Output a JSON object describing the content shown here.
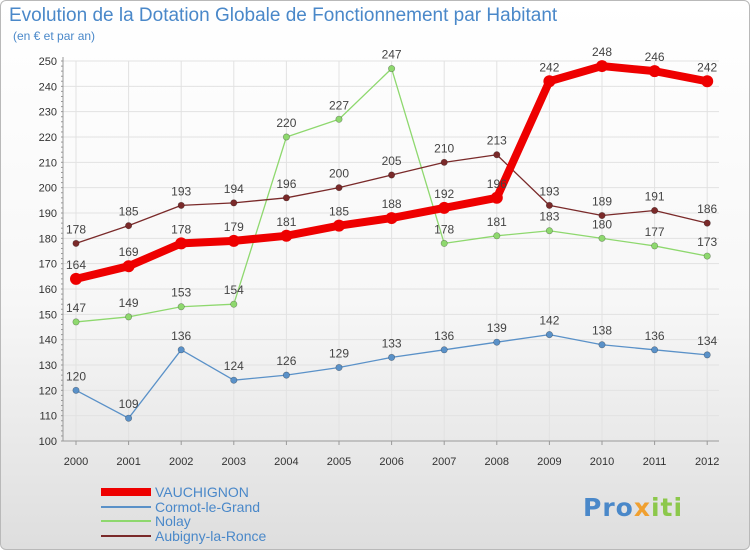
{
  "chart_data": {
    "type": "line",
    "title": "Evolution de la Dotation Globale de Fonctionnement par Habitant",
    "subtitle": "(en € et par an)",
    "xlabel": "",
    "ylabel": "",
    "x": [
      "2000",
      "2001",
      "2002",
      "2003",
      "2004",
      "2005",
      "2006",
      "2007",
      "2008",
      "2009",
      "2010",
      "2011",
      "2012"
    ],
    "ylim": [
      100,
      250
    ],
    "yticks": [
      100,
      110,
      120,
      130,
      140,
      150,
      160,
      170,
      180,
      190,
      200,
      210,
      220,
      230,
      240,
      250
    ],
    "grid": true,
    "legend_position": "bottom-left",
    "series": [
      {
        "name": "VAUCHIGNON",
        "color": "#ee0000",
        "values": [
          164,
          169,
          178,
          179,
          181,
          185,
          188,
          192,
          196,
          242,
          248,
          246,
          242
        ],
        "labels": [
          "164",
          "169",
          "178",
          "179",
          "181",
          "185",
          "188",
          "192",
          "196",
          "242",
          "248",
          "246",
          "242"
        ]
      },
      {
        "name": "Cormot-le-Grand",
        "color": "#5a91c8",
        "values": [
          120,
          109,
          136,
          124,
          126,
          129,
          133,
          136,
          139,
          142,
          138,
          136,
          134
        ],
        "labels": [
          "120",
          "109",
          "136",
          "124",
          "126",
          "129",
          "133",
          "136",
          "139",
          "142",
          "138",
          "136",
          "134"
        ]
      },
      {
        "name": "Nolay",
        "color": "#8ed86e",
        "values": [
          147,
          149,
          153,
          154,
          220,
          227,
          247,
          178,
          181,
          183,
          180,
          177,
          173
        ],
        "labels": [
          "147",
          "149",
          "153",
          "154",
          "220",
          "227",
          "247",
          "178",
          "181",
          "183",
          "180",
          "177",
          "173"
        ]
      },
      {
        "name": "Aubigny-la-Ronce",
        "color": "#7a2a2a",
        "values": [
          178,
          185,
          193,
          194,
          196,
          200,
          205,
          210,
          213,
          193,
          189,
          191,
          186
        ],
        "labels": [
          "178",
          "185",
          "193",
          "194",
          "196",
          "200",
          "205",
          "210",
          "213",
          "193",
          "189",
          "191",
          "186"
        ]
      }
    ]
  },
  "logo": {
    "p1": "Pro",
    "p2": "x",
    "p3": "iti"
  }
}
